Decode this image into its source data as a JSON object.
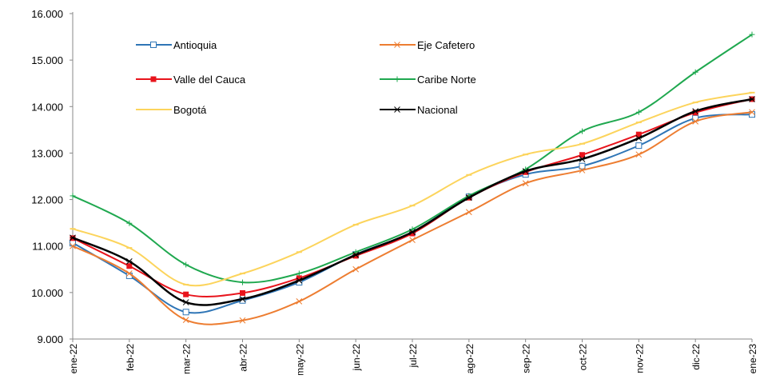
{
  "chart_data": {
    "type": "line",
    "categories": [
      "ene-22",
      "feb-22",
      "mar-22",
      "abr-22",
      "may-22",
      "jun-22",
      "jul-22",
      "ago-22",
      "sep-22",
      "oct-22",
      "nov-22",
      "dic-22",
      "ene-23"
    ],
    "ylim": [
      9000,
      16000
    ],
    "yticks": [
      {
        "value": 9000,
        "label": "9.000"
      },
      {
        "value": 10000,
        "label": "10.000"
      },
      {
        "value": 11000,
        "label": "11.000"
      },
      {
        "value": 12000,
        "label": "12.000"
      },
      {
        "value": 13000,
        "label": "13.000"
      },
      {
        "value": 14000,
        "label": "14.000"
      },
      {
        "value": 15000,
        "label": "15.000"
      },
      {
        "value": 16000,
        "label": "16.000"
      }
    ],
    "grid": false,
    "legend": "top-left",
    "series": [
      {
        "name": "Antioquia",
        "color": "#2e75b6",
        "marker": "square-open",
        "values": [
          11070,
          10360,
          9580,
          9830,
          10220,
          10820,
          11300,
          12060,
          12540,
          12720,
          13160,
          13750,
          13830
        ]
      },
      {
        "name": "Eje Cafetero",
        "color": "#ed7d31",
        "marker": "x",
        "values": [
          11000,
          10410,
          9410,
          9400,
          9810,
          10500,
          11130,
          11730,
          12350,
          12630,
          12970,
          13680,
          13880
        ]
      },
      {
        "name": "Valle del Cauca",
        "color": "#e8141c",
        "marker": "square",
        "values": [
          11170,
          10570,
          9960,
          9990,
          10310,
          10790,
          11270,
          12040,
          12590,
          12960,
          13400,
          13870,
          14160
        ]
      },
      {
        "name": "Caribe Norte",
        "color": "#1fa84f",
        "marker": "plus",
        "values": [
          12080,
          11490,
          10600,
          10220,
          10410,
          10870,
          11360,
          12080,
          12650,
          13470,
          13880,
          14740,
          15550
        ]
      },
      {
        "name": "Bogotá",
        "color": "#fcd45c",
        "marker": "dash",
        "values": [
          11370,
          10960,
          10170,
          10410,
          10870,
          11460,
          11870,
          12530,
          12970,
          13200,
          13660,
          14090,
          14300
        ]
      },
      {
        "name": "Nacional",
        "color": "#000000",
        "marker": "star",
        "values": [
          11180,
          10670,
          9790,
          9860,
          10260,
          10810,
          11300,
          12040,
          12610,
          12870,
          13320,
          13900,
          14160
        ]
      }
    ]
  }
}
